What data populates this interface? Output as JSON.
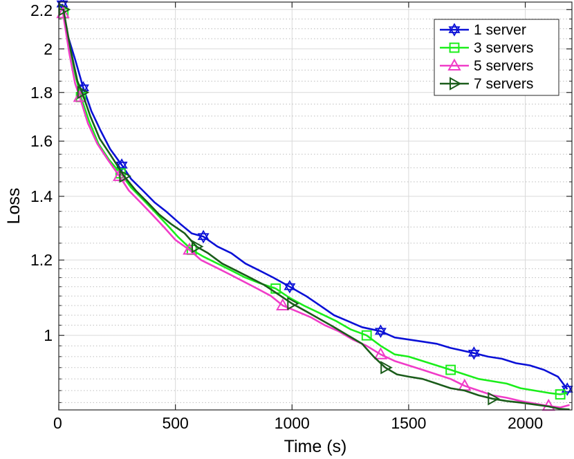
{
  "chart_data": {
    "type": "line",
    "title": "",
    "xlabel": "Time (s)",
    "ylabel": "Loss",
    "x_scale": "linear",
    "y_scale": "log",
    "xlim": [
      0,
      2200
    ],
    "ylim": [
      0.835,
      2.24
    ],
    "x_ticks": [
      0,
      500,
      1000,
      1500,
      2000
    ],
    "x_tick_labels": [
      "0",
      "500",
      "1000",
      "1500",
      "2000"
    ],
    "y_ticks": [
      1,
      1.2,
      1.4,
      1.6,
      1.8,
      2,
      2.2
    ],
    "y_tick_labels": [
      "1",
      "1.2",
      "1.4",
      "1.6",
      "1.8",
      "2",
      "2.2"
    ],
    "y_minor_ticks": [
      0.85,
      0.875,
      0.9,
      0.925,
      0.95,
      0.975,
      1.025,
      1.05,
      1.075,
      1.1,
      1.125,
      1.15,
      1.175,
      1.25,
      1.3,
      1.35,
      1.45,
      1.5,
      1.55,
      1.65,
      1.7,
      1.75,
      1.85,
      1.9,
      1.95,
      2.05,
      2.1,
      2.15
    ],
    "grid": true,
    "legend_position": "top-right",
    "series": [
      {
        "name": "1 server",
        "color": "#0a10d6",
        "marker": "hexagram",
        "x": [
          15,
          40,
          70,
          105,
          140,
          180,
          220,
          270,
          310,
          360,
          410,
          460,
          520,
          570,
          620,
          680,
          740,
          800,
          860,
          920,
          990,
          1060,
          1120,
          1180,
          1240,
          1300,
          1380,
          1440,
          1500,
          1560,
          1620,
          1680,
          1780,
          1840,
          1900,
          1960,
          2020,
          2080,
          2140,
          2180
        ],
        "y": [
          2.23,
          2.06,
          1.95,
          1.82,
          1.72,
          1.64,
          1.57,
          1.51,
          1.46,
          1.42,
          1.38,
          1.35,
          1.31,
          1.28,
          1.27,
          1.24,
          1.22,
          1.19,
          1.17,
          1.15,
          1.125,
          1.1,
          1.075,
          1.05,
          1.035,
          1.02,
          1.01,
          0.995,
          0.99,
          0.985,
          0.98,
          0.97,
          0.958,
          0.95,
          0.945,
          0.935,
          0.93,
          0.92,
          0.905,
          0.878
        ]
      },
      {
        "name": "3 servers",
        "color": "#1aee1a",
        "marker": "square",
        "x": [
          20,
          45,
          75,
          95,
          130,
          170,
          215,
          265,
          310,
          360,
          410,
          460,
          510,
          570,
          620,
          680,
          740,
          800,
          860,
          930,
          990,
          1050,
          1120,
          1190,
          1250,
          1320,
          1380,
          1440,
          1500,
          1560,
          1620,
          1680,
          1740,
          1800,
          1860,
          1920,
          1980,
          2040,
          2100,
          2150,
          2180
        ],
        "y": [
          2.18,
          2.0,
          1.86,
          1.78,
          1.68,
          1.59,
          1.53,
          1.48,
          1.43,
          1.39,
          1.35,
          1.31,
          1.27,
          1.23,
          1.21,
          1.19,
          1.17,
          1.15,
          1.135,
          1.12,
          1.095,
          1.075,
          1.055,
          1.035,
          1.015,
          1.0,
          0.975,
          0.955,
          0.95,
          0.94,
          0.93,
          0.92,
          0.91,
          0.9,
          0.895,
          0.89,
          0.88,
          0.875,
          0.87,
          0.867,
          0.87
        ]
      },
      {
        "name": "5 servers",
        "color": "#f03cc8",
        "marker": "triangle-up",
        "x": [
          18,
          45,
          70,
          90,
          125,
          165,
          210,
          260,
          300,
          350,
          400,
          450,
          500,
          560,
          610,
          670,
          730,
          790,
          850,
          910,
          960,
          1020,
          1080,
          1140,
          1200,
          1260,
          1320,
          1380,
          1440,
          1500,
          1560,
          1620,
          1680,
          1740,
          1800,
          1860,
          1920,
          1980,
          2040,
          2100,
          2150,
          2190
        ],
        "y": [
          2.18,
          1.98,
          1.84,
          1.78,
          1.67,
          1.59,
          1.53,
          1.47,
          1.42,
          1.38,
          1.34,
          1.3,
          1.26,
          1.23,
          1.2,
          1.18,
          1.16,
          1.14,
          1.12,
          1.1,
          1.075,
          1.06,
          1.045,
          1.025,
          1.01,
          0.99,
          0.975,
          0.955,
          0.94,
          0.93,
          0.92,
          0.91,
          0.9,
          0.885,
          0.875,
          0.865,
          0.86,
          0.853,
          0.848,
          0.843,
          0.84,
          0.845
        ]
      },
      {
        "name": "7 servers",
        "color": "#1a5c1a",
        "marker": "triangle-right",
        "x": [
          20,
          50,
          80,
          100,
          135,
          175,
          220,
          280,
          330,
          380,
          430,
          480,
          540,
          590,
          640,
          700,
          760,
          820,
          880,
          940,
          1000,
          1060,
          1120,
          1180,
          1240,
          1300,
          1350,
          1400,
          1450,
          1500,
          1560,
          1620,
          1680,
          1740,
          1800,
          1860,
          1920,
          1980,
          2040,
          2100,
          2150,
          2190
        ],
        "y": [
          2.2,
          2.0,
          1.85,
          1.8,
          1.7,
          1.61,
          1.55,
          1.47,
          1.42,
          1.38,
          1.34,
          1.31,
          1.28,
          1.24,
          1.22,
          1.19,
          1.17,
          1.15,
          1.13,
          1.105,
          1.08,
          1.06,
          1.04,
          1.02,
          1.0,
          0.98,
          0.95,
          0.925,
          0.91,
          0.905,
          0.9,
          0.89,
          0.88,
          0.875,
          0.865,
          0.858,
          0.853,
          0.85,
          0.846,
          0.842,
          0.837,
          0.836
        ]
      }
    ]
  }
}
